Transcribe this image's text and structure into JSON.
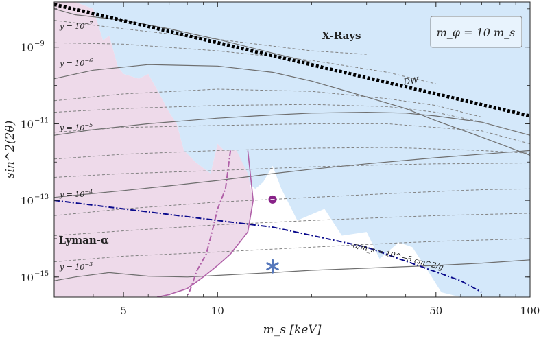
{
  "chart_data": {
    "type": "line",
    "xscale": "log",
    "yscale": "log",
    "xlim": [
      3,
      100
    ],
    "ylim": [
      3e-16,
      1.5e-08
    ],
    "xlabel": "m_s [keV]",
    "ylabel": "sin^2(2θ)",
    "x_ticks": [
      5,
      10,
      50,
      100
    ],
    "x_tick_labels": [
      "5",
      "10",
      "50",
      "100"
    ],
    "y_ticks": [
      1e-09,
      1e-11,
      1e-13,
      1e-15
    ],
    "y_tick_labels": [
      "10",
      "10",
      "10",
      "10"
    ],
    "y_tick_exponents": [
      "−9",
      "−11",
      "−13",
      "−15"
    ],
    "legend_box": "m_φ = 10 m_s",
    "regions": [
      {
        "name": "X-Rays",
        "label": "X-Rays",
        "color": "#d4e8fa",
        "boundary_x": [
          3.0,
          3.5,
          4.0,
          4.3,
          4.5,
          4.8,
          5.0,
          5.6,
          6.0,
          6.6,
          7.0,
          7.4,
          7.8,
          8.5,
          9.5,
          10.0,
          10.5,
          11.5,
          12.5,
          13.2,
          14.0,
          15.0,
          16.0,
          18.0,
          22.0,
          25.0,
          30.0,
          33.0,
          38.0,
          42.0,
          47.0,
          52.0,
          60.0,
          100.0
        ],
        "boundary_y": [
          1.5e-08,
          1.5e-08,
          1e-08,
          1.5e-09,
          2e-09,
          3e-10,
          2e-10,
          1.5e-10,
          2e-10,
          5e-11,
          2e-11,
          1e-11,
          2e-12,
          1e-12,
          5e-13,
          3e-12,
          2e-12,
          2e-12,
          3e-13,
          2e-13,
          3e-13,
          8e-13,
          2e-13,
          3e-14,
          6e-14,
          1.2e-14,
          1.5e-14,
          3e-15,
          8e-15,
          6e-15,
          1.5e-15,
          4e-16,
          3e-16,
          3e-16
        ]
      },
      {
        "name": "Lyman-α",
        "label": "Lyman-α",
        "color": "#eedaea",
        "boundary_x": [
          3.0,
          3.5,
          4.0,
          4.3,
          4.5,
          4.8,
          5.0,
          5.6,
          6.0,
          6.6,
          7.0,
          7.4,
          7.8,
          8.5,
          9.5,
          10.0,
          10.5,
          11.5,
          12.5,
          13.0,
          12.5,
          11.0,
          10.0,
          9.0,
          8.0,
          7.0,
          6.4
        ],
        "boundary_y": [
          1.5e-08,
          1.5e-08,
          1e-08,
          1.5e-09,
          2e-09,
          3e-10,
          2e-10,
          1.5e-10,
          2e-10,
          5e-11,
          2e-11,
          1e-11,
          2e-12,
          1e-12,
          5e-13,
          3e-12,
          2e-12,
          2e-12,
          5e-13,
          1e-13,
          1.5e-14,
          4e-15,
          2e-15,
          1e-15,
          5e-16,
          3.5e-16,
          3e-16
        ]
      }
    ],
    "series": [
      {
        "name": "y = 10^−7",
        "style": "solid",
        "color": "#6e6e6e",
        "x": [
          3.0,
          3.5,
          5.0,
          7.0,
          10.0,
          15.0,
          20.0
        ],
        "y": [
          1e-08,
          7e-09,
          5e-09,
          3e-09,
          1.6e-09,
          7e-10,
          4e-10
        ]
      },
      {
        "name": "y = 10^−6",
        "style": "solid",
        "color": "#6e6e6e",
        "x": [
          3.0,
          4.0,
          6.0,
          10.0,
          15.0,
          20.0,
          30.0,
          40.0,
          50.0,
          70.0,
          100.0
        ],
        "y": [
          1.5e-10,
          2.5e-10,
          3.5e-10,
          3.2e-10,
          2.2e-10,
          1.3e-10,
          5e-11,
          2.5e-11,
          1.2e-11,
          4.5e-12,
          1.5e-12
        ]
      },
      {
        "name": "y = 10^−5",
        "style": "solid",
        "color": "#6e6e6e",
        "x": [
          3.0,
          4.0,
          6.0,
          10.0,
          15.0,
          20.0,
          30.0,
          40.0,
          50.0,
          70.0,
          100.0
        ],
        "y": [
          5e-12,
          7e-12,
          1e-11,
          1.4e-11,
          1.7e-11,
          1.9e-11,
          2e-11,
          1.9e-11,
          1.6e-11,
          1.1e-11,
          5e-12
        ]
      },
      {
        "name": "y = 10^−4",
        "style": "solid",
        "color": "#6e6e6e",
        "x": [
          3.0,
          5.0,
          7.0,
          10.0,
          15.0,
          20.0,
          30.0,
          50.0,
          70.0,
          100.0
        ],
        "y": [
          1.2e-13,
          1.8e-13,
          2.4e-13,
          3.3e-13,
          5e-13,
          6.5e-13,
          9e-13,
          1.3e-12,
          1.6e-12,
          2e-12
        ]
      },
      {
        "name": "y = 10^−3",
        "style": "solid",
        "color": "#6e6e6e",
        "x": [
          3.0,
          3.5,
          4.5,
          5.0,
          6.0,
          8.0,
          10.0,
          15.0,
          20.0,
          30.0,
          50.0,
          70.0,
          100.0
        ],
        "y": [
          8e-16,
          1e-15,
          1.3e-15,
          1.2e-15,
          1.05e-15,
          1e-15,
          1.1e-15,
          1.3e-15,
          1.5e-15,
          1.7e-15,
          2e-15,
          2.3e-15,
          2.8e-15
        ]
      },
      {
        "name": "dashed contour 1",
        "style": "dashed",
        "color": "#808080",
        "x": [
          3.0,
          5.0,
          10.0,
          20.0,
          30.0
        ],
        "y": [
          5e-09,
          3e-09,
          1.6e-09,
          8e-10,
          6.5e-10
        ]
      },
      {
        "name": "dashed contour 2",
        "style": "dashed",
        "color": "#808080",
        "x": [
          3.0,
          5.0,
          10.0,
          20.0,
          35.0,
          50.0
        ],
        "y": [
          1.3e-09,
          1.2e-09,
          8e-10,
          4.5e-10,
          2.2e-10,
          1.1e-10
        ]
      },
      {
        "name": "dashed contour 3",
        "style": "dashed",
        "color": "#808080",
        "x": [
          3.0,
          5.0,
          10.0,
          20.0,
          35.0,
          50.0,
          70.0
        ],
        "y": [
          4e-11,
          6e-11,
          8e-11,
          7e-11,
          4.5e-11,
          3e-11,
          1.5e-11
        ]
      },
      {
        "name": "dashed contour 4",
        "style": "dashed",
        "color": "#808080",
        "x": [
          3.0,
          5.0,
          10.0,
          20.0,
          35.0,
          50.0,
          70.0,
          100.0
        ],
        "y": [
          2e-11,
          2.5e-11,
          3e-11,
          3.2e-11,
          2.8e-11,
          2e-11,
          1.1e-11,
          5e-12
        ]
      },
      {
        "name": "dashed contour 5",
        "style": "dashed",
        "color": "#808080",
        "x": [
          3.0,
          5.0,
          10.0,
          20.0,
          35.0,
          50.0,
          70.0,
          100.0
        ],
        "y": [
          6e-12,
          8e-12,
          9e-12,
          1e-11,
          1e-11,
          8e-12,
          6.5e-12,
          3e-12
        ]
      },
      {
        "name": "dashed contour 6",
        "style": "dashed",
        "color": "#808080",
        "x": [
          3.0,
          5.0,
          10.0,
          20.0,
          35.0,
          50.0,
          70.0,
          100.0
        ],
        "y": [
          1.2e-12,
          1.6e-12,
          2e-12,
          2.3e-12,
          2.4e-12,
          2.2e-12,
          2e-12,
          1.7e-12
        ]
      },
      {
        "name": "dashed contour 7",
        "style": "dashed",
        "color": "#808080",
        "x": [
          3.0,
          5.0,
          10.0,
          20.0,
          35.0,
          50.0,
          70.0,
          100.0
        ],
        "y": [
          4e-13,
          5e-13,
          6e-13,
          7.5e-13,
          8.5e-13,
          9e-13,
          9.2e-13,
          9.5e-13
        ]
      },
      {
        "name": "dashed contour 8",
        "style": "dashed",
        "color": "#808080",
        "x": [
          3.0,
          5.0,
          10.0,
          20.0,
          35.0,
          50.0,
          70.0,
          100.0
        ],
        "y": [
          4e-14,
          6e-14,
          9e-14,
          1.2e-13,
          1.5e-13,
          1.7e-13,
          1.9e-13,
          2e-13
        ]
      },
      {
        "name": "dashed contour 9",
        "style": "dashed",
        "color": "#808080",
        "x": [
          3.0,
          5.0,
          10.0,
          20.0,
          35.0,
          50.0,
          70.0,
          100.0
        ],
        "y": [
          1.2e-14,
          1.6e-14,
          2.3e-14,
          3e-14,
          3.6e-14,
          4e-14,
          4.3e-14,
          4.6e-14
        ]
      },
      {
        "name": "dashed contour 10",
        "style": "dashed",
        "color": "#808080",
        "x": [
          3.0,
          5.0,
          10.0,
          20.0,
          35.0,
          50.0,
          70.0,
          100.0
        ],
        "y": [
          2.5e-15,
          3.5e-15,
          4.5e-15,
          6e-15,
          7.5e-15,
          8.5e-15,
          9.2e-15,
          1e-14
        ]
      },
      {
        "name": "DW",
        "label": "DW",
        "style": "dotted-thick",
        "color": "#000000",
        "x": [
          3.0,
          100.0
        ],
        "y": [
          1.3e-08,
          1.6e-11
        ]
      },
      {
        "name": "σ/m_s = 10^−5 cm^2/g",
        "label": "σ/m_s = 10^−5 cm^2/g",
        "style": "dashdot",
        "color": "#0a0a8c",
        "x": [
          3.0,
          15.0,
          30.0,
          60.0,
          70.0
        ],
        "y": [
          1e-13,
          2e-14,
          6e-15,
          8e-16,
          4e-16
        ]
      },
      {
        "name": "purple solid boundary",
        "style": "solid",
        "color": "#b060a8",
        "x": [
          12.5,
          13.0,
          12.5,
          11.0,
          10.0,
          9.0,
          8.0,
          7.0,
          6.4
        ],
        "y": [
          2e-12,
          1e-13,
          1.5e-14,
          4e-15,
          2e-15,
          1e-15,
          5e-16,
          3.5e-16,
          3e-16
        ]
      },
      {
        "name": "purple dash-dot boundary",
        "style": "dashdot",
        "color": "#b060a8",
        "x": [
          11.0,
          10.6,
          10.0,
          9.6,
          9.2,
          8.6,
          8.2,
          8.0
        ],
        "y": [
          2e-12,
          2e-13,
          6e-14,
          1.5e-14,
          4e-15,
          1.5e-15,
          5e-16,
          3e-16
        ]
      }
    ],
    "line_labels": [
      {
        "text": "y = 10",
        "sup": "−7"
      },
      {
        "text": "y = 10",
        "sup": "−6"
      },
      {
        "text": "y = 10",
        "sup": "−5"
      },
      {
        "text": "y = 10",
        "sup": "−4"
      },
      {
        "text": "y = 10",
        "sup": "−3"
      }
    ],
    "markers": [
      {
        "name": "circle",
        "x": 15.0,
        "y": 1.05e-13,
        "color": "#882288"
      },
      {
        "name": "star",
        "x": 15.0,
        "y": 1.9e-15,
        "color": "#5577bb"
      }
    ]
  }
}
